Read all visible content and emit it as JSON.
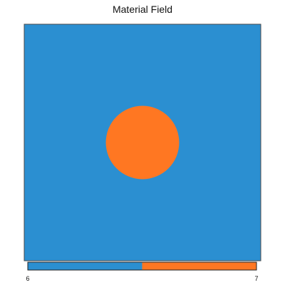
{
  "chart_data": {
    "type": "heatmap",
    "title": "Material Field",
    "xlabel": "",
    "ylabel": "",
    "field": {
      "background_value": 6,
      "inclusion": {
        "shape": "circle",
        "value": 7,
        "center_fraction": [
          0.5,
          0.5
        ],
        "radius_fraction": 0.155
      }
    },
    "colorbar": {
      "range": [
        6,
        7
      ],
      "tick_labels": [
        "6",
        "7"
      ],
      "colors": [
        "#2b8fd1",
        "#ff7722"
      ]
    },
    "grid": false,
    "legend": "colorbar-bottom"
  },
  "colors": {
    "background_material": "#2b8fd1",
    "inclusion_material": "#ff7722",
    "axes_edge": "#4a4a4a"
  }
}
